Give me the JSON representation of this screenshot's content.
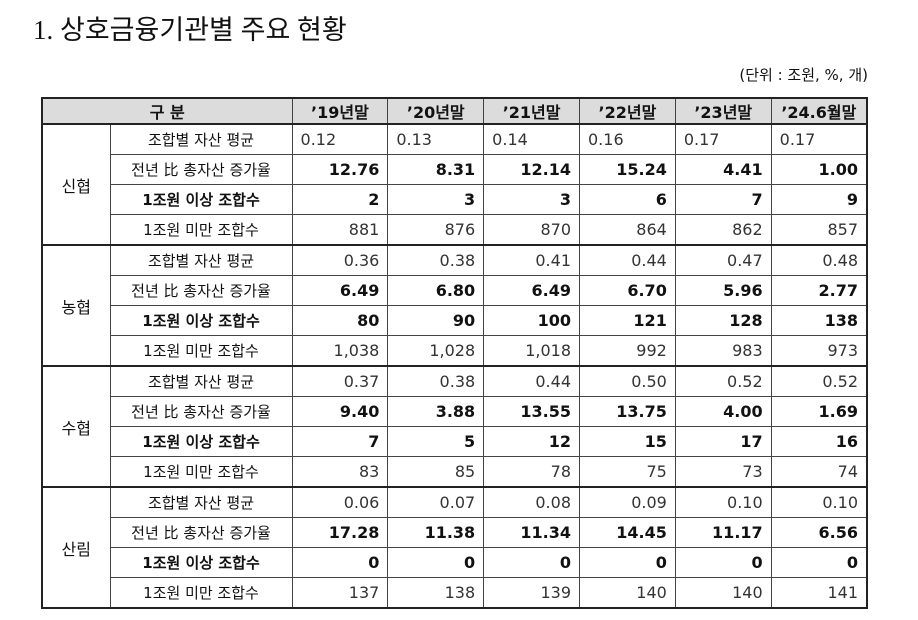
{
  "title": "1. 상호금융기관별 주요 현황",
  "unit": "(단위 : 조원, %, 개)",
  "table": {
    "header": [
      "구 분",
      "’19년말",
      "’20년말",
      "’21년말",
      "’22년말",
      "’23년말",
      "’24.6월말"
    ],
    "groups": [
      {
        "name": "신협",
        "rows": [
          {
            "label": "조합별 자산 평균",
            "values": [
              "0.12",
              "0.13",
              "0.14",
              "0.16",
              "0.17",
              "0.17"
            ]
          },
          {
            "label": "전년 比 총자산 증가율",
            "values": [
              "12.76",
              "8.31",
              "12.14",
              "15.24",
              "4.41",
              "1.00"
            ]
          },
          {
            "label": "1조원 이상 조합수",
            "values": [
              "2",
              "3",
              "3",
              "6",
              "7",
              "9"
            ]
          },
          {
            "label": "1조원 미만 조합수",
            "values": [
              "881",
              "876",
              "870",
              "864",
              "862",
              "857"
            ]
          }
        ]
      },
      {
        "name": "농협",
        "rows": [
          {
            "label": "조합별 자산 평균",
            "values": [
              "0.36",
              "0.38",
              "0.41",
              "0.44",
              "0.47",
              "0.48"
            ]
          },
          {
            "label": "전년 比 총자산 증가율",
            "values": [
              "6.49",
              "6.80",
              "6.49",
              "6.70",
              "5.96",
              "2.77"
            ]
          },
          {
            "label": "1조원 이상 조합수",
            "values": [
              "80",
              "90",
              "100",
              "121",
              "128",
              "138"
            ]
          },
          {
            "label": "1조원 미만 조합수",
            "values": [
              "1,038",
              "1,028",
              "1,018",
              "992",
              "983",
              "973"
            ]
          }
        ]
      },
      {
        "name": "수협",
        "rows": [
          {
            "label": "조합별 자산 평균",
            "values": [
              "0.37",
              "0.38",
              "0.44",
              "0.50",
              "0.52",
              "0.52"
            ]
          },
          {
            "label": "전년 比 총자산 증가율",
            "values": [
              "9.40",
              "3.88",
              "13.55",
              "13.75",
              "4.00",
              "1.69"
            ]
          },
          {
            "label": "1조원 이상 조합수",
            "values": [
              "7",
              "5",
              "12",
              "15",
              "17",
              "16"
            ]
          },
          {
            "label": "1조원 미만 조합수",
            "values": [
              "83",
              "85",
              "78",
              "75",
              "73",
              "74"
            ]
          }
        ]
      },
      {
        "name": "산림",
        "rows": [
          {
            "label": "조합별 자산 평균",
            "values": [
              "0.06",
              "0.07",
              "0.08",
              "0.09",
              "0.10",
              "0.10"
            ]
          },
          {
            "label": "전년 比 총자산 증가율",
            "values": [
              "17.28",
              "11.38",
              "11.34",
              "14.45",
              "11.17",
              "6.56"
            ]
          },
          {
            "label": "1조원 이상 조합수",
            "values": [
              "0",
              "0",
              "0",
              "0",
              "0",
              "0"
            ]
          },
          {
            "label": "1조원 미만 조합수",
            "values": [
              "137",
              "138",
              "139",
              "140",
              "140",
              "141"
            ]
          }
        ]
      }
    ]
  }
}
